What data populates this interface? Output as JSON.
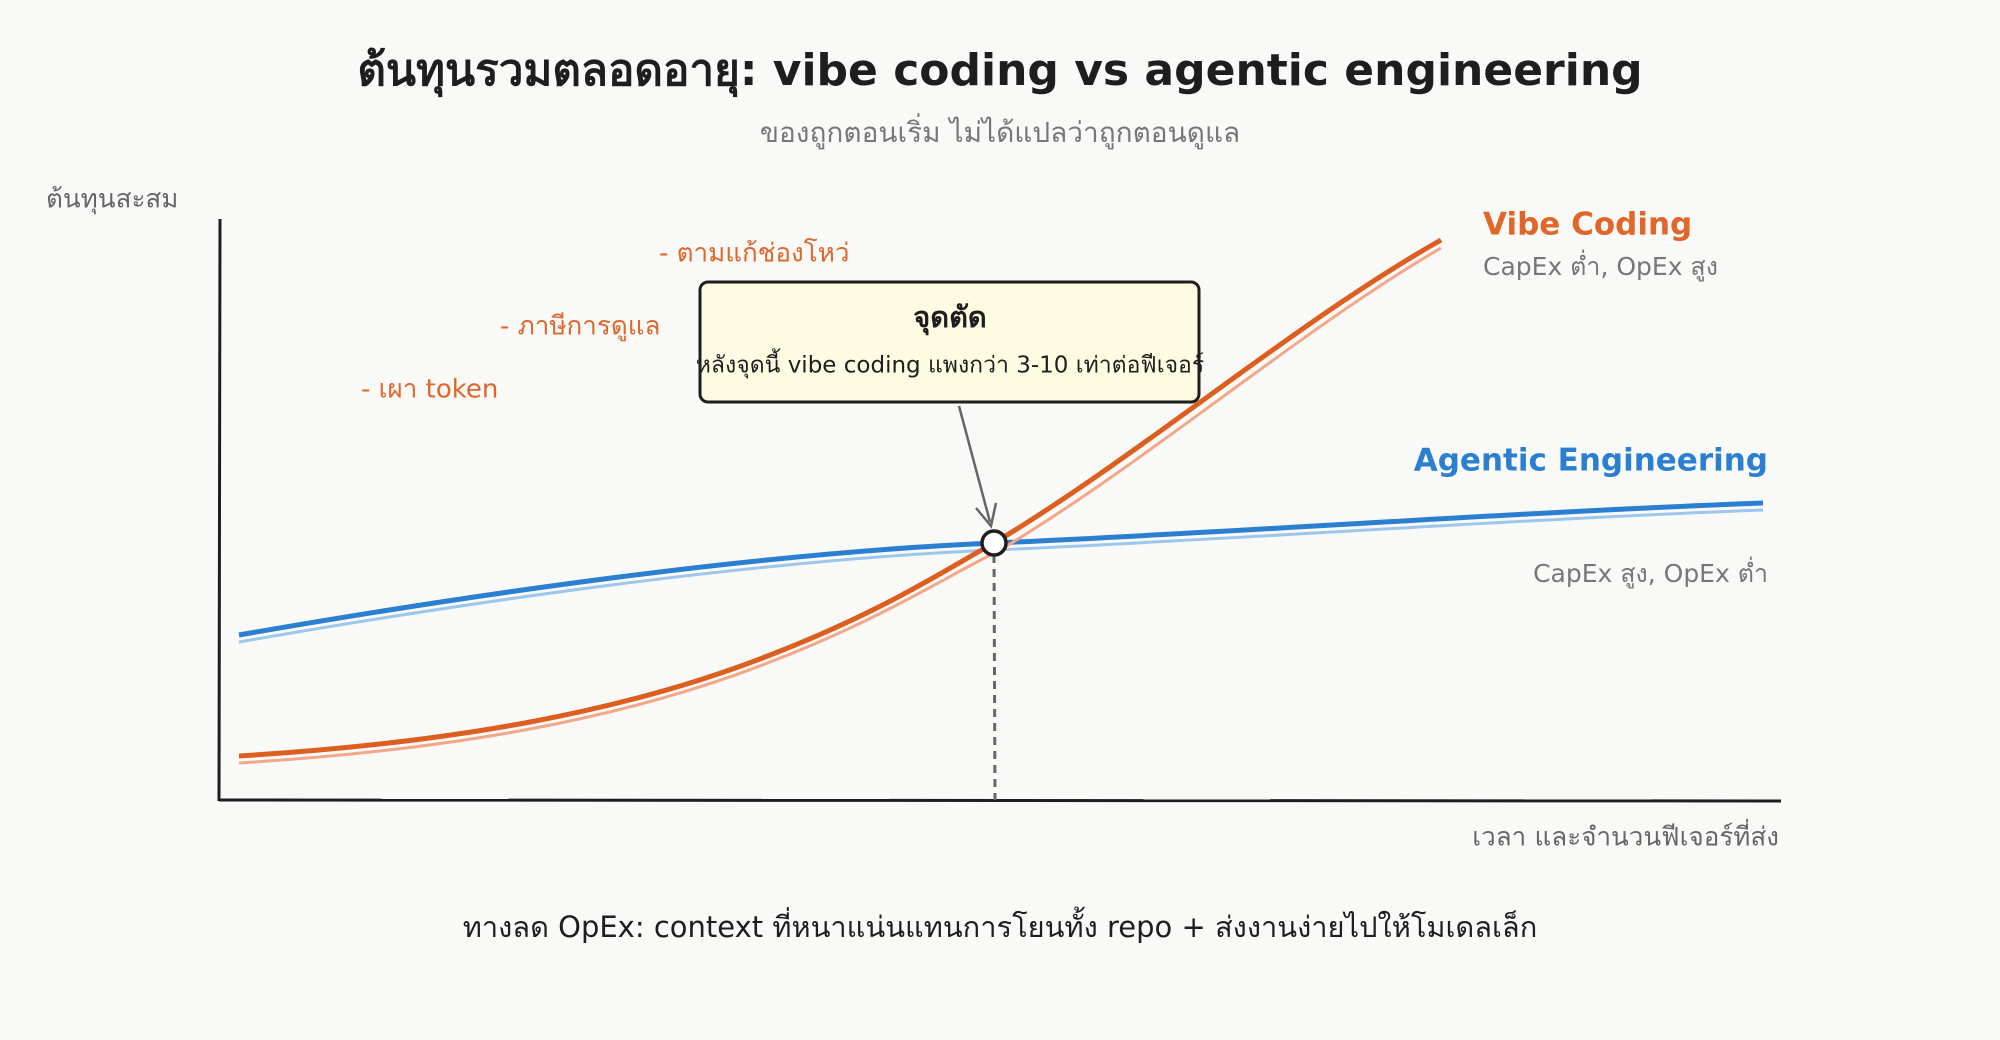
{
  "header": {
    "title": "ต้นทุนรวมตลอดอายุ: vibe coding vs agentic engineering",
    "subtitle": "ของถูกตอนเริ่ม ไม่ได้แปลว่าถูกตอนดูแล"
  },
  "axes": {
    "y_label": "ต้นทุนสะสม",
    "x_label": "เวลา และจำนวนฟีเจอร์ที่ส่ง"
  },
  "notes": [
    "- ตามแก้ช่องโหว่",
    "- ภาษีการดูแล",
    "- เผา token"
  ],
  "lines": [
    {
      "name": "Vibe Coding",
      "description": "CapEx ต่ำ, OpEx สูง"
    },
    {
      "name": "Agentic Engineering",
      "description": "CapEx สูง, OpEx ต่ำ"
    }
  ],
  "callout": {
    "title": "จุดตัด",
    "text": "หลังจุดนี้ vibe coding แพงกว่า 3-10 เท่าต่อฟีเจอร์"
  },
  "footnote": "ทางลด OpEx: context ที่หนาแน่นแทนการโยนทั้ง repo + ส่งงานง่ายไปให้โมเดลเล็ก"
}
